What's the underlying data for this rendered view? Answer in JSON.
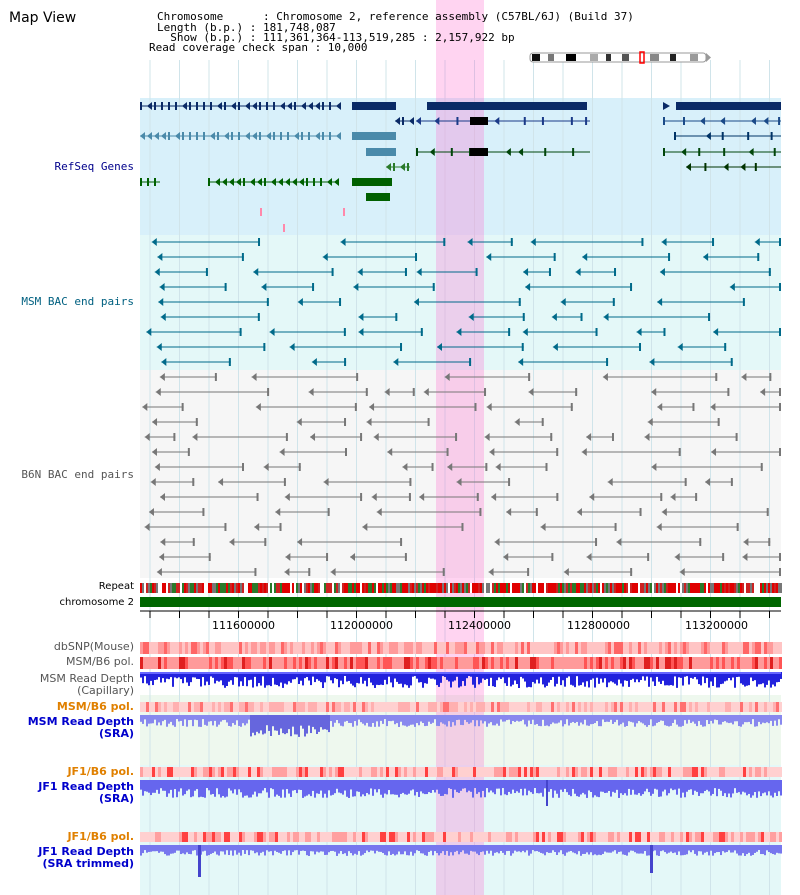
{
  "header": {
    "title": "Map View",
    "info_lines": [
      "Chromosome      : Chromosome 2, reference assembly (C57BL/6J) (Build 37)",
      "Length (b.p.) : 181,748,087",
      "  Show (b.p.) : 111,361,364-113,519,285 : 2,157,922 bp",
      "Read coverage check span : 10,000"
    ]
  },
  "tracks": {
    "refseq": "RefSeq Genes",
    "msm_bac": "MSM BAC end pairs",
    "b6n_bac": "B6N BAC end pairs",
    "repeat": "Repeat",
    "chromosome": "chromosome 2",
    "dbsnp": "dbSNP(Mouse)",
    "msm_b6_pol_1": "MSM/B6 pol.",
    "msm_depth_cap": [
      "MSM Read Depth",
      "(Capillary)"
    ],
    "msm_b6_pol_2": "MSM/B6 pol.",
    "msm_depth_sra": [
      "MSM Read Depth",
      "(SRA)"
    ],
    "jf1_b6_pol_1": "JF1/B6 pol.",
    "jf1_depth_sra": [
      "JF1 Read Depth",
      "(SRA)"
    ],
    "jf1_b6_pol_2": "JF1/B6 pol.",
    "jf1_depth_trim": [
      "JF1 Read Depth",
      "(SRA trimmed)"
    ]
  },
  "ruler": {
    "ticks": [
      "111600000",
      "112000000",
      "112400000",
      "112800000",
      "113200000"
    ]
  },
  "colors": {
    "refseq_label": "#00008b",
    "msm_label": "#006080",
    "b6n_label": "#555555",
    "jf1_pol_label": "#e08000",
    "highlight": "#ff66cc"
  }
}
